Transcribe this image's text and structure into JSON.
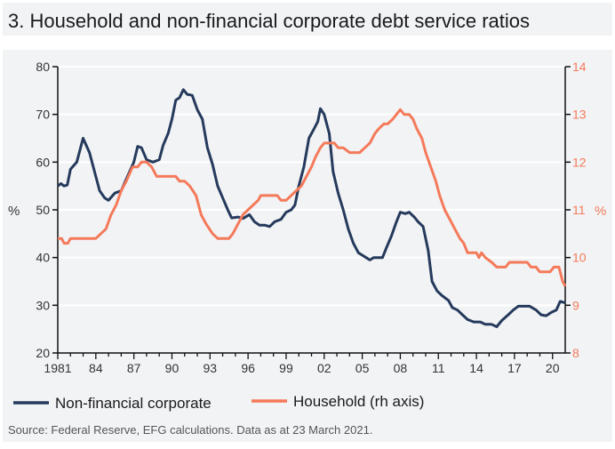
{
  "colors": {
    "corporate": "#253a5c",
    "household": "#f47a5a",
    "axis_text": "#333333",
    "right_axis_text": "#f47a5a",
    "panel_bg": "#f2f3f5",
    "grid": "#ffffff"
  },
  "chart_data": {
    "type": "line",
    "title": "3. Household and non-financial corporate debt service ratios",
    "ylabel": "%",
    "y2label": "%",
    "ylim": [
      20,
      80
    ],
    "y2lim": [
      8,
      14
    ],
    "yticks": [
      20,
      30,
      40,
      50,
      60,
      70,
      80
    ],
    "y2ticks": [
      8,
      9,
      10,
      11,
      12,
      13,
      14
    ],
    "xlim": [
      1981,
      2021
    ],
    "xticks": [
      1981,
      1984,
      1987,
      1990,
      1993,
      1996,
      1999,
      2002,
      2005,
      2008,
      2011,
      2014,
      2017,
      2020
    ],
    "xtick_labels": [
      "1981",
      "84",
      "87",
      "90",
      "93",
      "96",
      "99",
      "02",
      "05",
      "08",
      "11",
      "14",
      "17",
      "20"
    ],
    "grid": "horizontal",
    "legend_position": "bottom",
    "series": [
      {
        "name": "Non-financial corporate",
        "axis": "left",
        "color": "#253a5c",
        "x": [
          1981.0,
          1981.25,
          1981.5,
          1981.75,
          1982.0,
          1982.5,
          1983.0,
          1983.5,
          1984.0,
          1984.3,
          1984.7,
          1985.0,
          1985.5,
          1986.0,
          1986.5,
          1987.0,
          1987.3,
          1987.6,
          1988.0,
          1988.5,
          1989.0,
          1989.3,
          1989.7,
          1990.0,
          1990.3,
          1990.6,
          1990.9,
          1991.2,
          1991.6,
          1992.0,
          1992.4,
          1992.8,
          1993.2,
          1993.6,
          1994.0,
          1994.4,
          1994.7,
          1995.2,
          1995.6,
          1996.1,
          1996.5,
          1996.9,
          1997.3,
          1997.7,
          1998.1,
          1998.6,
          1999.0,
          1999.4,
          1999.7,
          2000.0,
          2000.4,
          2000.8,
          2001.2,
          2001.5,
          2001.7,
          2002.0,
          2002.4,
          2002.7,
          2003.1,
          2003.5,
          2003.9,
          2004.3,
          2004.7,
          2005.0,
          2005.3,
          2005.6,
          2005.9,
          2006.3,
          2006.6,
          2006.9,
          2007.3,
          2007.7,
          2008.0,
          2008.4,
          2008.7,
          2009.1,
          2009.4,
          2009.8,
          2010.2,
          2010.5,
          2010.9,
          2011.3,
          2011.8,
          2012.1,
          2012.5,
          2012.9,
          2013.3,
          2013.8,
          2014.3,
          2014.7,
          2015.2,
          2015.6,
          2016.0,
          2016.5,
          2016.9,
          2017.3,
          2017.8,
          2018.2,
          2018.7,
          2019.1,
          2019.5,
          2019.9,
          2020.3,
          2020.6,
          2021.0
        ],
        "values": [
          55,
          55.5,
          55,
          55.2,
          58.5,
          60,
          65,
          62,
          57,
          54,
          52.5,
          52,
          53.5,
          54,
          57,
          60,
          63.3,
          63,
          60.5,
          60,
          60.5,
          63.5,
          66,
          69,
          73,
          73.5,
          75.2,
          74.2,
          74,
          71,
          69,
          63,
          59.5,
          55,
          52.5,
          50,
          48.3,
          48.5,
          48.2,
          49,
          47.5,
          46.8,
          46.8,
          46.5,
          47.5,
          48,
          49.5,
          50,
          51,
          55,
          59,
          65,
          67,
          68.5,
          71.2,
          70,
          66,
          58,
          53.5,
          50,
          46,
          43,
          41,
          40.5,
          40,
          39.5,
          40,
          40,
          40,
          42,
          44.5,
          47.5,
          49.5,
          49.2,
          49.5,
          48.5,
          47.5,
          46.5,
          41.5,
          35,
          33,
          32,
          31,
          29.5,
          29,
          28,
          27,
          26.5,
          26.5,
          26,
          26,
          25.5,
          26.8,
          28,
          29,
          29.8,
          29.8,
          29.8,
          29,
          28,
          27.8,
          28.5,
          29,
          30.8,
          30.5
        ]
      },
      {
        "name": "Household (rh axis)",
        "axis": "right",
        "color": "#f47a5a",
        "x": [
          1981.0,
          1981.3,
          1981.5,
          1981.8,
          1982.0,
          1983.0,
          1984.0,
          1984.4,
          1984.8,
          1985.2,
          1985.6,
          1986.0,
          1986.4,
          1986.9,
          1987.3,
          1987.6,
          1988.0,
          1988.4,
          1988.8,
          1989.5,
          1990.3,
          1990.6,
          1991.0,
          1991.4,
          1991.9,
          1992.3,
          1992.7,
          1993.2,
          1993.6,
          1994.5,
          1994.8,
          1995.2,
          1995.6,
          1996.0,
          1996.4,
          1996.8,
          1997.0,
          1998.3,
          1998.6,
          1999.0,
          1999.4,
          1999.8,
          2000.2,
          2000.6,
          2001.0,
          2001.3,
          2001.7,
          2002.0,
          2002.8,
          2003.1,
          2003.5,
          2004.0,
          2004.8,
          2005.2,
          2005.6,
          2006.0,
          2006.3,
          2006.7,
          2007.0,
          2007.4,
          2007.7,
          2008.0,
          2008.3,
          2008.7,
          2009.0,
          2009.3,
          2009.7,
          2010.0,
          2010.4,
          2010.8,
          2011.1,
          2011.5,
          2011.9,
          2012.3,
          2012.7,
          2013.0,
          2013.3,
          2014.0,
          2014.2,
          2014.4,
          2014.7,
          2015.2,
          2015.6,
          2016.3,
          2016.6,
          2018.0,
          2018.3,
          2018.7,
          2019.0,
          2019.8,
          2020.1,
          2020.5,
          2020.8,
          2021.0
        ],
        "values": [
          10.4,
          10.4,
          10.3,
          10.3,
          10.4,
          10.4,
          10.4,
          10.5,
          10.6,
          10.9,
          11.1,
          11.4,
          11.6,
          11.9,
          11.9,
          12.0,
          12.0,
          11.9,
          11.7,
          11.7,
          11.7,
          11.6,
          11.6,
          11.5,
          11.3,
          10.9,
          10.7,
          10.5,
          10.4,
          10.4,
          10.5,
          10.7,
          10.9,
          11.0,
          11.1,
          11.2,
          11.3,
          11.3,
          11.2,
          11.2,
          11.3,
          11.4,
          11.5,
          11.7,
          11.9,
          12.1,
          12.3,
          12.4,
          12.4,
          12.3,
          12.3,
          12.2,
          12.2,
          12.3,
          12.4,
          12.6,
          12.7,
          12.8,
          12.8,
          12.9,
          13.0,
          13.1,
          13.0,
          13.0,
          12.9,
          12.7,
          12.5,
          12.2,
          11.9,
          11.6,
          11.3,
          11.0,
          10.8,
          10.6,
          10.4,
          10.3,
          10.1,
          10.1,
          10.0,
          10.1,
          10.0,
          9.9,
          9.8,
          9.8,
          9.9,
          9.9,
          9.8,
          9.8,
          9.7,
          9.7,
          9.8,
          9.8,
          9.5,
          9.4
        ]
      }
    ],
    "source": "Source: Federal Reserve, EFG calculations. Data as at 23 March 2021."
  }
}
